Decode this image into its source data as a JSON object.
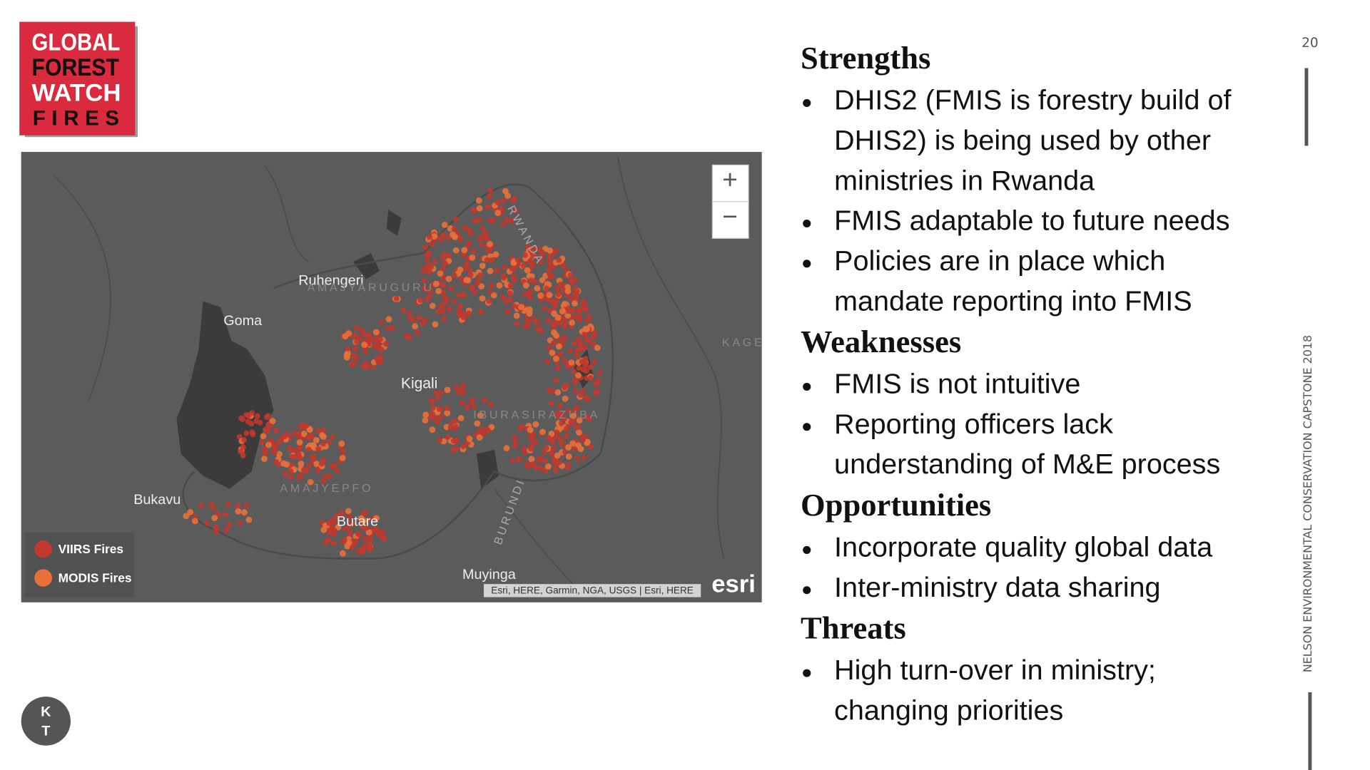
{
  "logo": {
    "lines": [
      "GLOBAL",
      "FOREST",
      "WATCH",
      "FIRES"
    ]
  },
  "map": {
    "labels": [
      "Ruhengeri",
      "Goma",
      "Kigali",
      "Bukavu",
      "Butare",
      "Muyinga",
      "AMAJYARUGURU",
      "AMAJYEPFO",
      "IBURASIRAZUBA",
      "KAGE",
      "RWANDA",
      "BURUNDI"
    ],
    "legend": [
      "VIIRS Fires",
      "MODIS Fires"
    ],
    "zoom_in": "+",
    "zoom_out": "−",
    "attribution": "Esri, HERE, Garmin, NGA, USGS | Esri, HERE",
    "brand": "esri"
  },
  "sections": [
    {
      "heading": "Strengths",
      "bullets": [
        [
          "DHIS2 (FMIS is forestry build of",
          "DHIS2) is being used by other",
          "ministries in Rwanda"
        ],
        [
          "FMIS adaptable to future needs"
        ],
        [
          "Policies are in place which",
          "mandate reporting into FMIS"
        ]
      ]
    },
    {
      "heading": "Weaknesses",
      "bullets": [
        [
          "FMIS is not intuitive"
        ],
        [
          "Reporting officers lack",
          "understanding of M&E process"
        ]
      ]
    },
    {
      "heading": "Opportunities",
      "bullets": [
        [
          "Incorporate quality global data"
        ],
        [
          "Inter-ministry data sharing"
        ]
      ]
    },
    {
      "heading": "Threats",
      "bullets": [
        [
          "High turn-over in ministry;",
          "changing priorities"
        ]
      ]
    }
  ],
  "page_number": "20",
  "footer": "NELSON ENVIRONMENTAL CONSERVATION CAPSTONE 2018",
  "initials": [
    "K",
    "T"
  ]
}
